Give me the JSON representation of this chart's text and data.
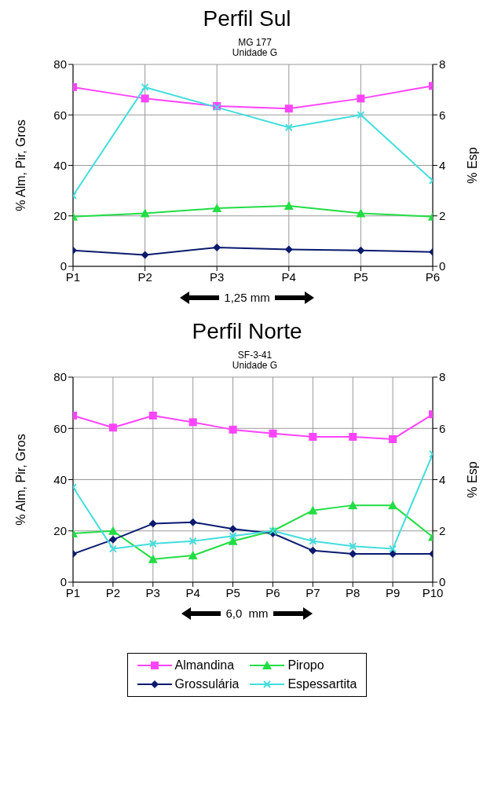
{
  "chart_data": [
    {
      "type": "line",
      "title": "Perfil Sul",
      "subtitle": "MG 177\nUnidade G",
      "ylabel": "% Alm, Pir, Gros",
      "y2label": "% Esp",
      "annotations": [
        "1,25 mm"
      ],
      "categories": [
        "P1",
        "P2",
        "P3",
        "P4",
        "P5",
        "P6"
      ],
      "ylim": [
        0,
        80
      ],
      "yticks": [
        0,
        20,
        40,
        60,
        80
      ],
      "y2lim": [
        0,
        8
      ],
      "y2ticks": [
        0,
        2,
        4,
        6,
        8
      ],
      "grid": true,
      "legend": false,
      "series": [
        {
          "color": "#ff44ff",
          "marker": "square",
          "values": [
            71,
            66.5,
            63.5,
            62.5,
            66.5,
            71.5
          ]
        },
        {
          "color": "#22dd44",
          "marker": "triangle",
          "values": [
            19.7,
            21,
            23,
            24,
            21,
            19.7
          ]
        },
        {
          "color": "#0a1a6e",
          "marker": "diamond",
          "values": [
            6.3,
            4.5,
            7.5,
            6.7,
            6.3,
            5.7
          ]
        },
        {
          "color": "#44dddd",
          "marker": "cross",
          "axis": "y2",
          "values": [
            2.8,
            7.1,
            6.3,
            5.5,
            6,
            3.4
          ]
        }
      ]
    },
    {
      "type": "line",
      "title": "Perfil Norte",
      "subtitle": "SF-3-41\nUnidade G",
      "ylabel": "% Alm, Pir, Gros",
      "y2label": "% Esp",
      "annotations": [
        "6,0  mm"
      ],
      "categories": [
        "P1",
        "P2",
        "P3",
        "P4",
        "P5",
        "P6",
        "P7",
        "P8",
        "P9",
        "P10"
      ],
      "ylim": [
        0,
        80
      ],
      "yticks": [
        0,
        20,
        40,
        60,
        80
      ],
      "y2lim": [
        0,
        8
      ],
      "y2ticks": [
        0,
        2,
        4,
        6,
        8
      ],
      "grid": true,
      "legend": "bottom",
      "series": [
        {
          "name": "Almandina",
          "color": "#ff44ff",
          "marker": "square",
          "values": [
            65,
            60.3,
            65,
            62.4,
            59.5,
            58,
            56.7,
            56.7,
            55.8,
            65.5
          ]
        },
        {
          "name": "Piropo",
          "color": "#22dd44",
          "marker": "triangle",
          "values": [
            19,
            20,
            9,
            10.4,
            16,
            20,
            28,
            30,
            30,
            17.6
          ]
        },
        {
          "name": "Grossulária",
          "color": "#0a1a6e",
          "marker": "diamond",
          "values": [
            11,
            16.6,
            22.8,
            23.4,
            20.8,
            19,
            12.3,
            11,
            11,
            11
          ]
        },
        {
          "name": "Espessartita",
          "color": "#44dddd",
          "marker": "cross",
          "axis": "y2",
          "values": [
            3.7,
            1.3,
            1.5,
            1.6,
            1.8,
            2,
            1.6,
            1.4,
            1.3,
            5
          ]
        }
      ]
    }
  ]
}
